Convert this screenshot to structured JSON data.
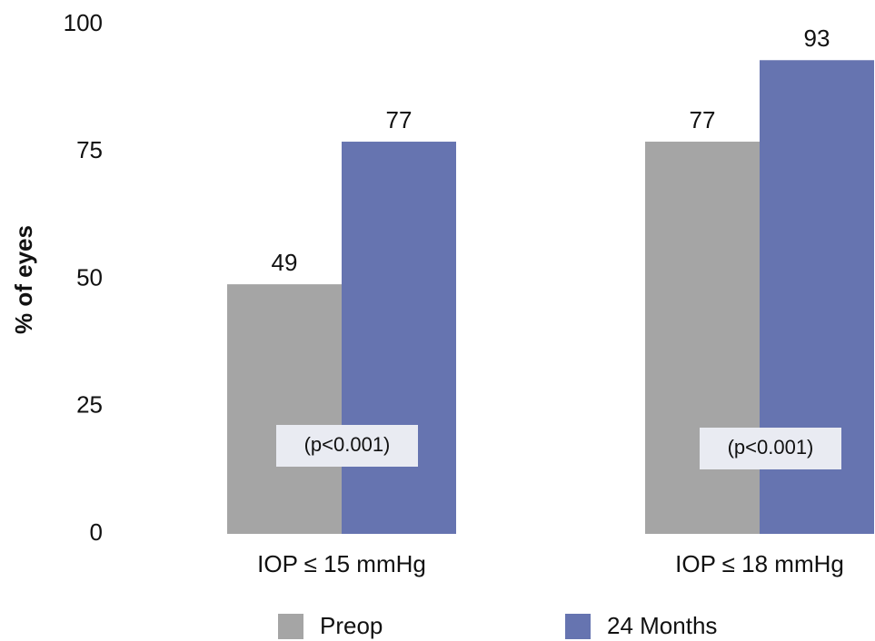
{
  "chart_data": {
    "type": "bar",
    "y_label": "% of eyes",
    "categories": [
      "IOP ≤ 15 mmHg",
      "IOP ≤ 18 mmHg"
    ],
    "series": [
      {
        "name": "Preop",
        "color": "#a5a5a5",
        "values": [
          49,
          77
        ]
      },
      {
        "name": "24 Months",
        "color": "#6674b0",
        "values": [
          77,
          93
        ]
      }
    ],
    "annotations": [
      "(p<0.001)",
      "(p<0.001)"
    ],
    "ylim": [
      0,
      100
    ],
    "yticks": [
      0,
      25,
      50,
      75,
      100
    ],
    "grid": false,
    "legend": "bottom"
  }
}
